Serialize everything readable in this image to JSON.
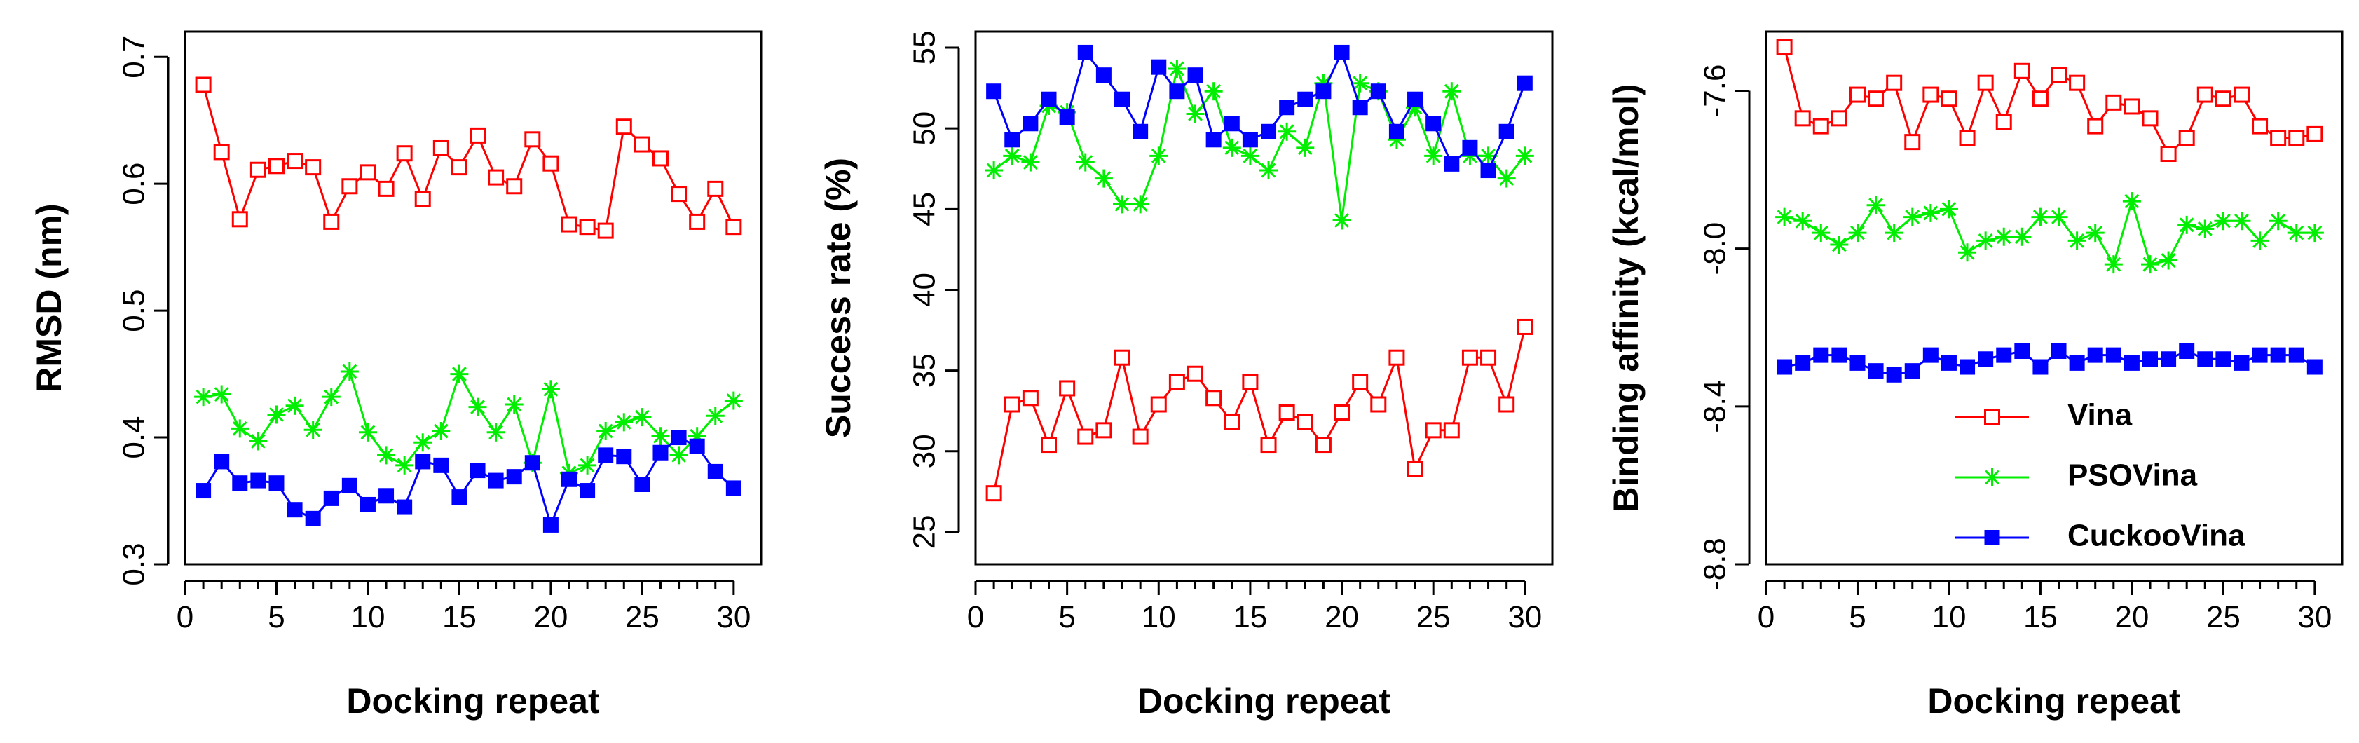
{
  "chart_data": [
    {
      "type": "line",
      "xlabel": "Docking repeat",
      "ylabel": "RMSD (nm)",
      "xlim": [
        0,
        31.5
      ],
      "ylim": [
        0.3,
        0.72
      ],
      "xticks": [
        0,
        5,
        10,
        15,
        20,
        25,
        30
      ],
      "yticks": [
        0.3,
        0.4,
        0.5,
        0.6,
        0.7
      ],
      "ytick_labels": [
        "0.3",
        "0.4",
        "0.5",
        "0.6",
        "0.7"
      ],
      "x": [
        1,
        2,
        3,
        4,
        5,
        6,
        7,
        8,
        9,
        10,
        11,
        12,
        13,
        14,
        15,
        16,
        17,
        18,
        19,
        20,
        21,
        22,
        23,
        24,
        25,
        26,
        27,
        28,
        29,
        30
      ],
      "series": [
        {
          "name": "Vina",
          "color": "#ff0000",
          "marker": "open-square",
          "values": [
            0.678,
            0.625,
            0.572,
            0.611,
            0.614,
            0.618,
            0.613,
            0.57,
            0.598,
            0.609,
            0.596,
            0.624,
            0.588,
            0.628,
            0.613,
            0.638,
            0.605,
            0.598,
            0.635,
            0.616,
            0.568,
            0.566,
            0.563,
            0.645,
            0.631,
            0.62,
            0.592,
            0.57,
            0.596,
            0.566
          ]
        },
        {
          "name": "PSOVina",
          "color": "#00ee00",
          "marker": "star",
          "values": [
            0.432,
            0.434,
            0.407,
            0.397,
            0.418,
            0.425,
            0.406,
            0.432,
            0.452,
            0.404,
            0.386,
            0.378,
            0.396,
            0.405,
            0.45,
            0.424,
            0.404,
            0.426,
            0.38,
            0.438,
            0.372,
            0.378,
            0.405,
            0.412,
            0.416,
            0.401,
            0.386,
            0.401,
            0.417,
            0.429
          ]
        },
        {
          "name": "CuckooVina",
          "color": "#0000ff",
          "marker": "filled-square",
          "values": [
            0.358,
            0.381,
            0.364,
            0.366,
            0.364,
            0.343,
            0.336,
            0.352,
            0.362,
            0.347,
            0.354,
            0.345,
            0.381,
            0.378,
            0.353,
            0.374,
            0.366,
            0.369,
            0.38,
            0.331,
            0.367,
            0.358,
            0.386,
            0.385,
            0.363,
            0.388,
            0.4,
            0.393,
            0.373,
            0.36
          ]
        }
      ]
    },
    {
      "type": "line",
      "xlabel": "Docking repeat",
      "ylabel": "Success rate (%)",
      "xlim": [
        0,
        31.5
      ],
      "ylim": [
        23,
        56
      ],
      "xticks": [
        0,
        5,
        10,
        15,
        20,
        25,
        30
      ],
      "yticks": [
        25,
        30,
        35,
        40,
        45,
        50,
        55
      ],
      "ytick_labels": [
        "25",
        "30",
        "35",
        "40",
        "45",
        "50",
        "55"
      ],
      "x": [
        1,
        2,
        3,
        4,
        5,
        6,
        7,
        8,
        9,
        10,
        11,
        12,
        13,
        14,
        15,
        16,
        17,
        18,
        19,
        20,
        21,
        22,
        23,
        24,
        25,
        26,
        27,
        28,
        29,
        30
      ],
      "series": [
        {
          "name": "Vina",
          "color": "#ff0000",
          "marker": "open-square",
          "values": [
            27.4,
            32.9,
            33.3,
            30.4,
            33.9,
            30.9,
            31.3,
            35.8,
            30.9,
            32.9,
            34.3,
            34.8,
            33.3,
            31.8,
            34.3,
            30.4,
            32.4,
            31.8,
            30.4,
            32.4,
            34.3,
            32.9,
            35.8,
            28.9,
            31.3,
            31.3,
            35.8,
            35.8,
            32.9,
            37.7
          ]
        },
        {
          "name": "PSOVina",
          "color": "#00ee00",
          "marker": "star",
          "values": [
            47.4,
            48.3,
            47.9,
            51.4,
            51.0,
            47.9,
            46.9,
            45.3,
            45.3,
            48.3,
            53.7,
            50.9,
            52.3,
            48.8,
            48.3,
            47.4,
            49.8,
            48.8,
            52.8,
            44.3,
            52.8,
            52.3,
            49.3,
            51.3,
            48.3,
            52.3,
            48.3,
            48.3,
            46.9,
            48.3
          ]
        },
        {
          "name": "CuckooVina",
          "color": "#0000ff",
          "marker": "filled-square",
          "values": [
            52.3,
            49.3,
            50.3,
            51.8,
            50.7,
            54.7,
            53.3,
            51.8,
            49.8,
            53.8,
            52.3,
            53.3,
            49.3,
            50.3,
            49.3,
            49.8,
            51.3,
            51.8,
            52.3,
            54.7,
            51.3,
            52.3,
            49.8,
            51.8,
            50.3,
            47.8,
            48.8,
            47.4,
            49.8,
            52.8
          ]
        }
      ]
    },
    {
      "type": "line",
      "xlabel": "Docking repeat",
      "ylabel": "Binding affinity (kcal/mol)",
      "xlim": [
        0,
        31.5
      ],
      "ylim": [
        -8.8,
        -7.45
      ],
      "xticks": [
        0,
        5,
        10,
        15,
        20,
        25,
        30
      ],
      "yticks": [
        -8.8,
        -8.4,
        -8.0,
        -7.6
      ],
      "ytick_labels": [
        "-8.8",
        "-8.4",
        "-8.0",
        "-7.6"
      ],
      "x": [
        1,
        2,
        3,
        4,
        5,
        6,
        7,
        8,
        9,
        10,
        11,
        12,
        13,
        14,
        15,
        16,
        17,
        18,
        19,
        20,
        21,
        22,
        23,
        24,
        25,
        26,
        27,
        28,
        29,
        30
      ],
      "series": [
        {
          "name": "Vina",
          "color": "#ff0000",
          "marker": "open-square",
          "values": [
            -7.49,
            -7.67,
            -7.69,
            -7.67,
            -7.61,
            -7.62,
            -7.58,
            -7.73,
            -7.61,
            -7.62,
            -7.72,
            -7.58,
            -7.68,
            -7.55,
            -7.62,
            -7.56,
            -7.58,
            -7.69,
            -7.63,
            -7.64,
            -7.67,
            -7.76,
            -7.72,
            -7.61,
            -7.62,
            -7.61,
            -7.69,
            -7.72,
            -7.72,
            -7.71
          ]
        },
        {
          "name": "PSOVina",
          "color": "#00ee00",
          "marker": "star",
          "values": [
            -7.92,
            -7.93,
            -7.96,
            -7.99,
            -7.96,
            -7.89,
            -7.96,
            -7.92,
            -7.91,
            -7.9,
            -8.01,
            -7.98,
            -7.97,
            -7.97,
            -7.92,
            -7.92,
            -7.98,
            -7.96,
            -8.04,
            -7.88,
            -8.04,
            -8.03,
            -7.94,
            -7.95,
            -7.93,
            -7.93,
            -7.98,
            -7.93,
            -7.96,
            -7.96
          ]
        },
        {
          "name": "CuckooVina",
          "color": "#0000ff",
          "marker": "filled-square",
          "values": [
            -8.3,
            -8.29,
            -8.27,
            -8.27,
            -8.29,
            -8.31,
            -8.32,
            -8.31,
            -8.27,
            -8.29,
            -8.3,
            -8.28,
            -8.27,
            -8.26,
            -8.3,
            -8.26,
            -8.29,
            -8.27,
            -8.27,
            -8.29,
            -8.28,
            -8.28,
            -8.26,
            -8.28,
            -8.28,
            -8.29,
            -8.27,
            -8.27,
            -8.27,
            -8.3
          ]
        }
      ],
      "legend": {
        "placement": "bottom-right",
        "entries": [
          "Vina",
          "PSOVina",
          "CuckooVina"
        ]
      }
    }
  ]
}
